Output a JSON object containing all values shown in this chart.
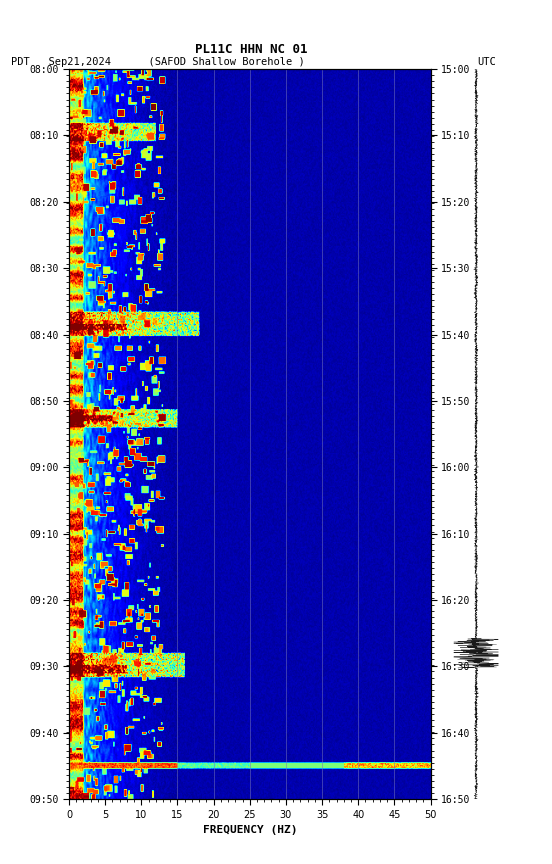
{
  "title_line1": "PL11C HHN NC 01",
  "title_line2_left": "PDT   Sep21,2024      (SAFOD Shallow Borehole )",
  "title_line2_right": "UTC",
  "xlabel": "FREQUENCY (HZ)",
  "freq_min": 0,
  "freq_max": 50,
  "freq_ticks": [
    0,
    5,
    10,
    15,
    20,
    25,
    30,
    35,
    40,
    45,
    50
  ],
  "time_labels_left": [
    "08:00",
    "08:10",
    "08:20",
    "08:30",
    "08:40",
    "08:50",
    "09:00",
    "09:10",
    "09:20",
    "09:30",
    "09:40",
    "09:50"
  ],
  "time_labels_right": [
    "15:00",
    "15:10",
    "15:20",
    "15:30",
    "15:40",
    "15:50",
    "16:00",
    "16:10",
    "16:20",
    "16:30",
    "16:40",
    "16:50"
  ],
  "n_time_steps": 600,
  "n_freq_steps": 500,
  "background_color": "white",
  "colormap": "jet",
  "vmin": 0.0,
  "vmax": 1.0,
  "vertical_line_freqs": [
    15,
    20,
    25,
    30,
    35,
    40,
    45
  ],
  "vertical_line_color": "#7777bb",
  "fig_width": 5.52,
  "fig_height": 8.64,
  "dpi": 100
}
